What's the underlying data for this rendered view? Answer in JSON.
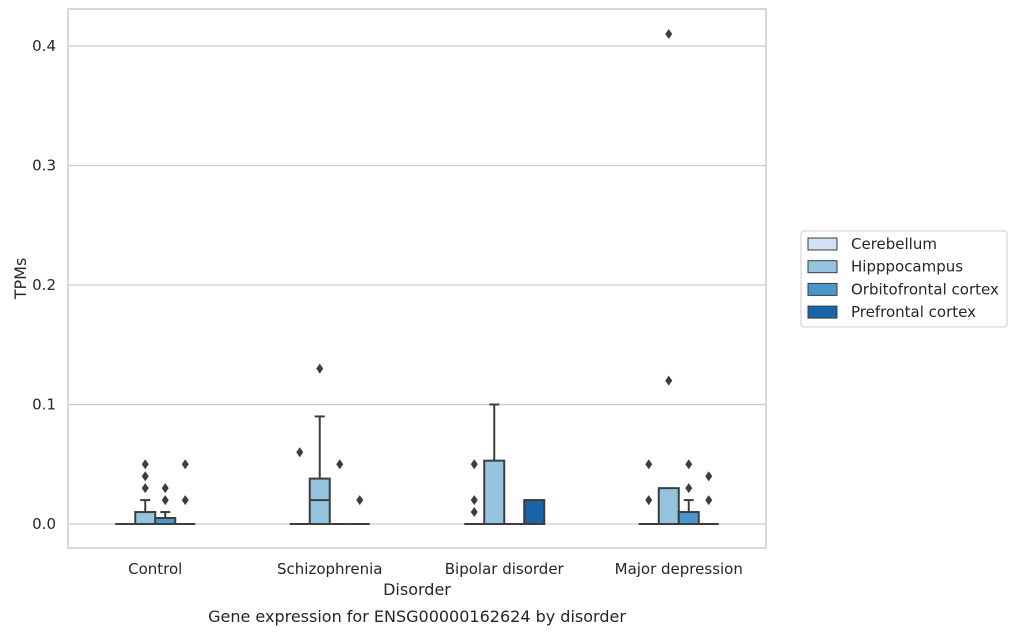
{
  "chart_data": {
    "type": "box",
    "title": "Gene expression for ENSG00000162624 by disorder",
    "xlabel": "Disorder",
    "ylabel": "TPMs",
    "ylim": [
      -0.02,
      0.43
    ],
    "yticks": [
      0.0,
      0.1,
      0.2,
      0.3,
      0.4
    ],
    "ytick_labels": [
      "0.0",
      "0.1",
      "0.2",
      "0.3",
      "0.4"
    ],
    "grid": "horizontal",
    "legend_position": "right",
    "categories": [
      "Control",
      "Schizophrenia",
      "Bipolar disorder",
      "Major depression"
    ],
    "series": [
      {
        "name": "Cerebellum",
        "color": "#d0e1f2",
        "boxes": [
          {
            "category": "Control",
            "min": 0,
            "q1": 0,
            "median": 0,
            "q3": 0,
            "max": 0,
            "outliers": []
          },
          {
            "category": "Schizophrenia",
            "min": 0,
            "q1": 0,
            "median": 0,
            "q3": 0,
            "max": 0,
            "outliers": [
              0.06
            ]
          },
          {
            "category": "Bipolar disorder",
            "min": 0,
            "q1": 0,
            "median": 0,
            "q3": 0,
            "max": 0,
            "outliers": [
              0.01,
              0.02,
              0.05
            ]
          },
          {
            "category": "Major depression",
            "min": 0,
            "q1": 0,
            "median": 0,
            "q3": 0,
            "max": 0,
            "outliers": [
              0.02,
              0.05
            ]
          }
        ]
      },
      {
        "name": "Hipppocampus",
        "color": "#94c4df",
        "boxes": [
          {
            "category": "Control",
            "min": 0,
            "q1": 0,
            "median": 0,
            "q3": 0.01,
            "max": 0.02,
            "outliers": [
              0.03,
              0.04,
              0.05
            ]
          },
          {
            "category": "Schizophrenia",
            "min": 0,
            "q1": 0,
            "median": 0.02,
            "q3": 0.038,
            "max": 0.09,
            "outliers": [
              0.13
            ]
          },
          {
            "category": "Bipolar disorder",
            "min": 0,
            "q1": 0,
            "median": 0,
            "q3": 0.053,
            "max": 0.1,
            "outliers": []
          },
          {
            "category": "Major depression",
            "min": 0,
            "q1": 0,
            "median": 0,
            "q3": 0.03,
            "max": 0.03,
            "outliers": [
              0.12,
              0.41
            ]
          }
        ]
      },
      {
        "name": "Orbitofrontal cortex",
        "color": "#4a98c9",
        "boxes": [
          {
            "category": "Control",
            "min": 0,
            "q1": 0,
            "median": 0,
            "q3": 0.005,
            "max": 0.01,
            "outliers": [
              0.02,
              0.03
            ]
          },
          {
            "category": "Schizophrenia",
            "min": 0,
            "q1": 0,
            "median": 0,
            "q3": 0,
            "max": 0,
            "outliers": [
              0.05
            ]
          },
          {
            "category": "Bipolar disorder",
            "min": 0,
            "q1": 0,
            "median": 0,
            "q3": 0,
            "max": 0,
            "outliers": []
          },
          {
            "category": "Major depression",
            "min": 0,
            "q1": 0,
            "median": 0,
            "q3": 0.01,
            "max": 0.02,
            "outliers": [
              0.03,
              0.05
            ]
          }
        ]
      },
      {
        "name": "Prefrontal cortex",
        "color": "#1764ab",
        "boxes": [
          {
            "category": "Control",
            "min": 0,
            "q1": 0,
            "median": 0,
            "q3": 0,
            "max": 0,
            "outliers": [
              0.02,
              0.05
            ]
          },
          {
            "category": "Schizophrenia",
            "min": 0,
            "q1": 0,
            "median": 0,
            "q3": 0,
            "max": 0,
            "outliers": [
              0.02
            ]
          },
          {
            "category": "Bipolar disorder",
            "min": 0,
            "q1": 0,
            "median": 0.02,
            "q3": 0.02,
            "max": 0.02,
            "outliers": []
          },
          {
            "category": "Major depression",
            "min": 0,
            "q1": 0,
            "median": 0,
            "q3": 0,
            "max": 0,
            "outliers": [
              0.02,
              0.04
            ]
          }
        ]
      }
    ]
  }
}
